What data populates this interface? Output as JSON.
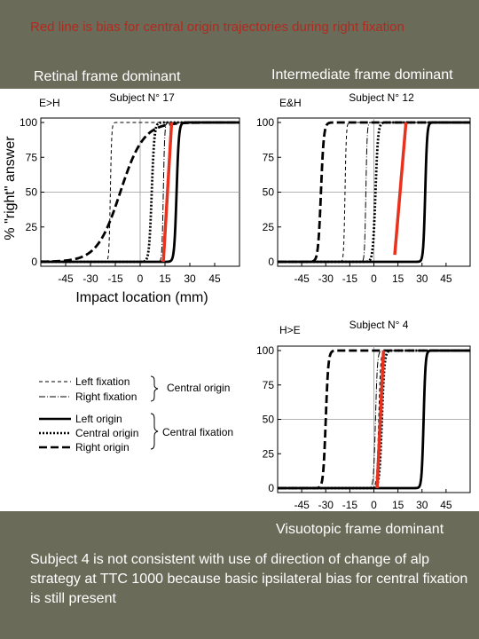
{
  "note_top": "Red line is bias for central origin trajectories during right fixation",
  "captions": {
    "retinal": "Retinal frame dominant",
    "intermediate": "Intermediate frame dominant",
    "visuotopic": "Visuotopic frame dominant"
  },
  "note_bottom": "Subject 4 is not consistent with use of direction of change of alp strategy at TTC 1000 because basic ipsilateral bias for central fixation is still present",
  "colors": {
    "background": "#6b6b5a",
    "bias_line": "#e8321e",
    "note_top": "#b22a1e"
  },
  "legend": {
    "group1": {
      "items": [
        "Left fixation",
        "Right fixation"
      ],
      "label": "Central origin"
    },
    "group2": {
      "items": [
        "Left origin",
        "Central origin",
        "Right origin"
      ],
      "label": "Central fixation"
    }
  },
  "chart_data": [
    {
      "type": "line",
      "tag": "E>H",
      "title": "Subject N° 17",
      "xlabel": "Impact location (mm)",
      "ylabel": "% \"right\" answer",
      "xlim": [
        -60,
        60
      ],
      "ylim": [
        0,
        100
      ],
      "xticks": [
        -45,
        -30,
        -15,
        0,
        15,
        30,
        45
      ],
      "yticks": [
        0,
        25,
        50,
        75,
        100
      ],
      "grid": "reference lines at x=0 and y=50",
      "series": [
        {
          "name": "Left fixation",
          "style": "thin-dashed",
          "x50": -18,
          "spread": 0.4
        },
        {
          "name": "Right fixation",
          "style": "thin-dashdot",
          "x50": 14,
          "spread": 0.4
        },
        {
          "name": "Left origin",
          "style": "solid",
          "x50": 22,
          "spread": 0.7
        },
        {
          "name": "Central origin",
          "style": "dotted",
          "x50": 7,
          "spread": 0.8
        },
        {
          "name": "Right origin",
          "style": "long-dashed",
          "x50": -12,
          "spread": 7
        }
      ],
      "bias_line": {
        "from": [
          14,
          0
        ],
        "to": [
          19,
          100
        ]
      }
    },
    {
      "type": "line",
      "tag": "E&H",
      "title": "Subject N° 12",
      "xlim": [
        -60,
        60
      ],
      "ylim": [
        0,
        100
      ],
      "xticks": [
        -45,
        -30,
        -15,
        0,
        15,
        30,
        45
      ],
      "yticks": [
        0,
        25,
        50,
        75,
        100
      ],
      "grid": "reference lines at x=0 and y=50",
      "series": [
        {
          "name": "Left fixation",
          "style": "thin-dashed",
          "x50": -18,
          "spread": 0.4
        },
        {
          "name": "Right fixation",
          "style": "thin-dashdot",
          "x50": -5,
          "spread": 0.4
        },
        {
          "name": "Left origin",
          "style": "solid",
          "x50": 32,
          "spread": 0.6
        },
        {
          "name": "Central origin",
          "style": "dotted",
          "x50": 1,
          "spread": 0.8
        },
        {
          "name": "Right origin",
          "style": "long-dashed",
          "x50": -33,
          "spread": 0.9
        }
      ],
      "bias_line": {
        "from": [
          13,
          5
        ],
        "to": [
          20,
          100
        ]
      }
    },
    {
      "type": "line",
      "tag": "H>E",
      "title": "Subject N° 4",
      "xlim": [
        -60,
        60
      ],
      "ylim": [
        0,
        100
      ],
      "xticks": [
        -45,
        -30,
        -15,
        0,
        15,
        30,
        45
      ],
      "yticks": [
        0,
        25,
        50,
        75,
        100
      ],
      "grid": "reference lines at x=0 and y=50",
      "series": [
        {
          "name": "Left fixation",
          "style": "thin-dashed",
          "x50": 3,
          "spread": 0.6
        },
        {
          "name": "Right fixation",
          "style": "thin-dashdot",
          "x50": 1,
          "spread": 0.6
        },
        {
          "name": "Left origin",
          "style": "solid",
          "x50": 31,
          "spread": 0.6
        },
        {
          "name": "Central origin",
          "style": "dotted",
          "x50": 5,
          "spread": 0.8
        },
        {
          "name": "Right origin",
          "style": "long-dashed",
          "x50": -30,
          "spread": 0.8
        }
      ],
      "bias_line": {
        "from": [
          2,
          0
        ],
        "to": [
          6,
          100
        ]
      }
    }
  ]
}
